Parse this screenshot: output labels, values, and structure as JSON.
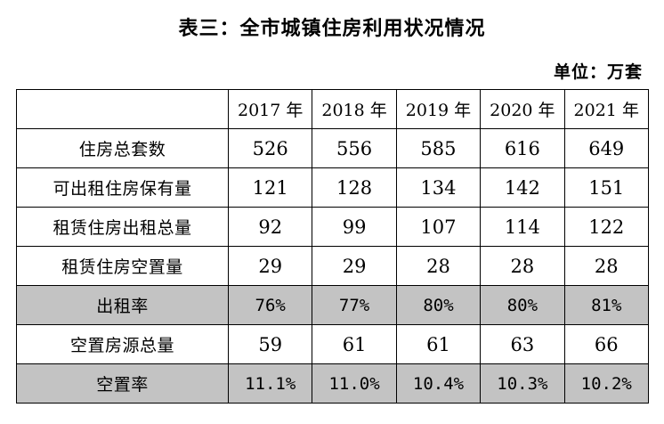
{
  "title": "表三：全市城镇住房利用状况情况",
  "unit": "单位：万套",
  "table": {
    "corner": "",
    "years": [
      "2017 年",
      "2018 年",
      "2019 年",
      "2020 年",
      "2021 年"
    ],
    "rows": [
      {
        "label": "住房总套数",
        "values": [
          "526",
          "556",
          "585",
          "616",
          "649"
        ],
        "shaded": false
      },
      {
        "label": "可出租住房保有量",
        "values": [
          "121",
          "128",
          "134",
          "142",
          "151"
        ],
        "shaded": false
      },
      {
        "label": "租赁住房出租总量",
        "values": [
          "92",
          "99",
          "107",
          "114",
          "122"
        ],
        "shaded": false
      },
      {
        "label": "租赁住房空置量",
        "values": [
          "29",
          "29",
          "28",
          "28",
          "28"
        ],
        "shaded": false
      },
      {
        "label": "出租率",
        "values": [
          "76%",
          "77%",
          "80%",
          "80%",
          "81%"
        ],
        "shaded": true
      },
      {
        "label": "空置房源总量",
        "values": [
          "59",
          "61",
          "61",
          "63",
          "66"
        ],
        "shaded": false
      },
      {
        "label": "空置率",
        "values": [
          "11.1%",
          "11.0%",
          "10.4%",
          "10.3%",
          "10.2%"
        ],
        "shaded": true
      }
    ]
  },
  "colors": {
    "shade": "#c3c3c3",
    "border": "#000000"
  }
}
